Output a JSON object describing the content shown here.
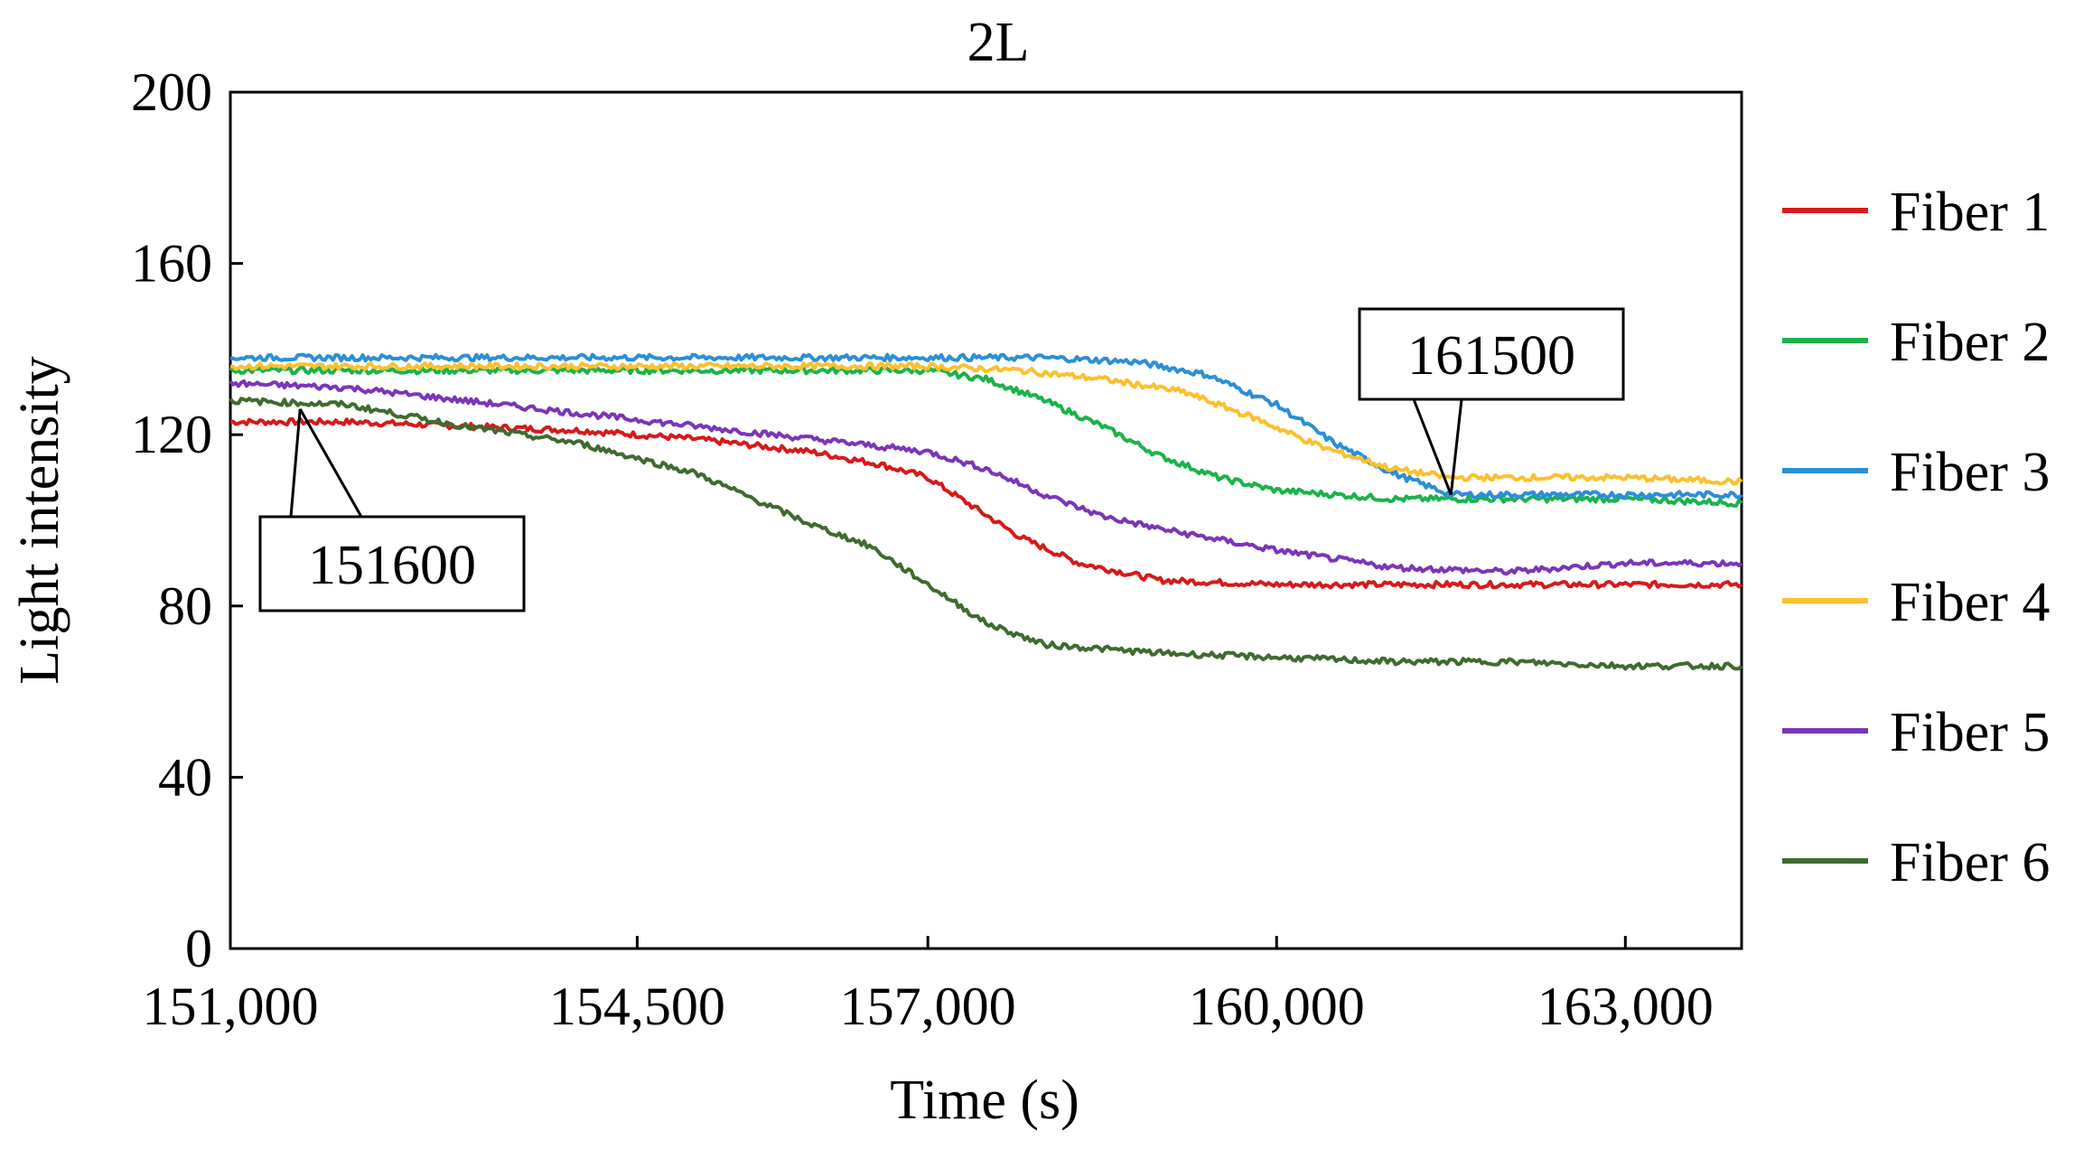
{
  "chart_data": {
    "type": "line",
    "title": "2L",
    "xlabel": "Time (s)",
    "ylabel": "Light intensity",
    "xlim": [
      151000,
      164000
    ],
    "ylim": [
      0,
      200
    ],
    "x_ticks": [
      151000,
      154500,
      157000,
      160000,
      163000
    ],
    "x_tick_labels": [
      "151,000",
      "154,500",
      "157,000",
      "160,000",
      "163,000"
    ],
    "y_ticks": [
      0,
      40,
      80,
      120,
      160,
      200
    ],
    "y_tick_labels": [
      "0",
      "40",
      "80",
      "120",
      "160",
      "200"
    ],
    "grid": false,
    "legend_position": "right",
    "series": [
      {
        "name": "Fiber 1",
        "color": "#d7191c",
        "x": [
          151000,
          152000,
          153000,
          154000,
          155000,
          156000,
          156600,
          157000,
          157400,
          157800,
          158300,
          159000,
          160000,
          161000,
          162000,
          163000,
          164000
        ],
        "y": [
          123,
          123,
          122,
          121,
          119,
          116,
          113,
          110,
          103,
          96,
          90,
          86,
          85,
          85,
          85,
          85,
          85
        ]
      },
      {
        "name": "Fiber 2",
        "color": "#19b34a",
        "x": [
          151000,
          152000,
          153000,
          154000,
          155000,
          156000,
          157000,
          157500,
          158000,
          158500,
          159000,
          159500,
          160000,
          160500,
          161000,
          162000,
          163000,
          164000
        ],
        "y": [
          135,
          135,
          135,
          135,
          135,
          135,
          135,
          133,
          128,
          122,
          115,
          110,
          107,
          106,
          105,
          105,
          105,
          104
        ]
      },
      {
        "name": "Fiber 3",
        "color": "#2b8fd6",
        "x": [
          151000,
          152000,
          153000,
          154000,
          155000,
          156000,
          157000,
          158000,
          158800,
          159400,
          160000,
          160500,
          161000,
          161500,
          162000,
          163000,
          164000
        ],
        "y": [
          138,
          138,
          138,
          138,
          138,
          138,
          138,
          138,
          137,
          134,
          127,
          118,
          111,
          106,
          106,
          106,
          106
        ]
      },
      {
        "name": "Fiber 4",
        "color": "#fbc02d",
        "x": [
          151000,
          152000,
          153000,
          154000,
          155000,
          156000,
          157000,
          157800,
          158500,
          159200,
          159800,
          160400,
          161000,
          161500,
          162000,
          163000,
          164000
        ],
        "y": [
          136,
          136,
          136,
          136,
          136,
          136,
          136,
          135,
          133,
          130,
          124,
          117,
          112,
          110,
          110,
          110,
          109
        ]
      },
      {
        "name": "Fiber 5",
        "color": "#7b35b9",
        "x": [
          151000,
          152000,
          153000,
          154000,
          155000,
          156000,
          157000,
          157500,
          158000,
          158500,
          159000,
          160000,
          161000,
          162000,
          163000,
          164000
        ],
        "y": [
          132,
          131,
          128,
          125,
          122,
          119,
          116,
          112,
          106,
          101,
          98,
          93,
          89,
          88,
          90,
          90
        ]
      },
      {
        "name": "Fiber 6",
        "color": "#3f6b2f",
        "x": [
          151000,
          152000,
          153000,
          154000,
          155000,
          155500,
          156000,
          156500,
          157000,
          157500,
          158000,
          158500,
          159000,
          160000,
          161000,
          162000,
          163000,
          164000
        ],
        "y": [
          128,
          127,
          122,
          118,
          111,
          105,
          99,
          94,
          85,
          76,
          71,
          70,
          69,
          68,
          67,
          67,
          66,
          66
        ]
      }
    ],
    "annotations": [
      {
        "text": "151600",
        "x": 151600,
        "y": 126
      },
      {
        "text": "161500",
        "x": 161500,
        "y": 106
      }
    ]
  }
}
